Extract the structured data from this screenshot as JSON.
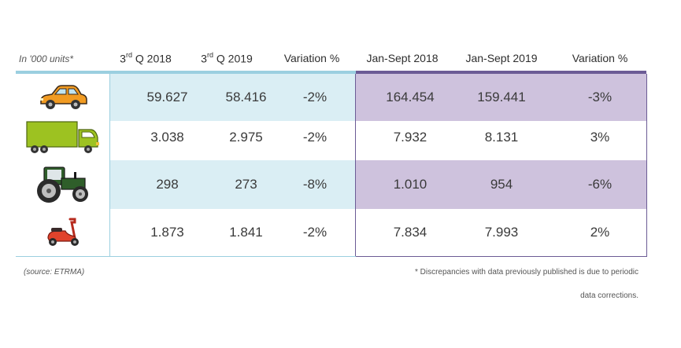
{
  "header": {
    "unit_note": "In '000 units*",
    "col1_sup": "rd",
    "col1_pre": "3",
    "col1_post": " Q 2018",
    "col2_sup": "rd",
    "col2_pre": "3",
    "col2_post": " Q 2019",
    "col3": "Variation %",
    "col4": "Jan-Sept 2018",
    "col5": "Jan-Sept 2019",
    "col6": "Variation %"
  },
  "rows": [
    {
      "icon": "car-icon",
      "q3_2018": "59.627",
      "q3_2019": "58.416",
      "q_var": "-2%",
      "ytd_2018": "164.454",
      "ytd_2019": "159.441",
      "ytd_var": "-3%"
    },
    {
      "icon": "truck-icon",
      "q3_2018": "3.038",
      "q3_2019": "2.975",
      "q_var": "-2%",
      "ytd_2018": "7.932",
      "ytd_2019": "8.131",
      "ytd_var": "3%"
    },
    {
      "icon": "tractor-icon",
      "q3_2018": "298",
      "q3_2019": "273",
      "q_var": "-8%",
      "ytd_2018": "1.010",
      "ytd_2019": "954",
      "ytd_var": "-6%"
    },
    {
      "icon": "scooter-icon",
      "q3_2018": "1.873",
      "q3_2019": "1.841",
      "q_var": "-2%",
      "ytd_2018": "7.834",
      "ytd_2019": "7.993",
      "ytd_var": "2%"
    }
  ],
  "footer": {
    "source": "(source: ETRMA)",
    "note_line1": "* Discrepancies with data previously published is due to periodic",
    "note_line2": "data corrections."
  },
  "colors": {
    "left_accent": "#9bcfe0",
    "left_shade": "#daeef4",
    "right_accent": "#6b5b95",
    "right_shade": "#cec2dd"
  }
}
